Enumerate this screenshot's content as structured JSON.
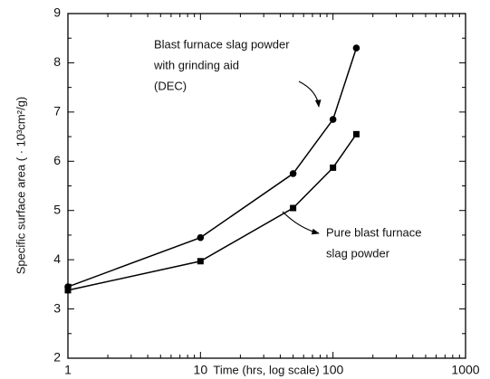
{
  "chart_data": {
    "type": "line",
    "x_label": "Time (hrs, log scale)",
    "y_label": "Specific surface area ( · 10³cm²/g)",
    "x": [
      1,
      10,
      50,
      100,
      150
    ],
    "series": [
      {
        "name": "Blast furnace slag powder with grinding aid (DEC)",
        "color": "#000000",
        "marker": "circle",
        "values": [
          3.45,
          4.45,
          5.75,
          6.85,
          8.3
        ]
      },
      {
        "name": "Pure blast furnace slag powder",
        "color": "#000000",
        "marker": "square",
        "values": [
          3.38,
          3.97,
          5.05,
          5.87,
          6.55
        ]
      }
    ],
    "annotations": [
      {
        "lines": [
          "Blast furnace slag powder",
          "with grinding aid",
          "(DEC)"
        ]
      },
      {
        "lines": [
          "Pure blast furnace",
          "slag powder"
        ]
      }
    ],
    "xscale": "log",
    "xlim": [
      1,
      1000
    ],
    "xticks": [
      1,
      10,
      100,
      1000
    ],
    "ylim": [
      2,
      9
    ],
    "yticks": [
      2,
      3,
      4,
      5,
      6,
      7,
      8,
      9
    ],
    "grid": false
  }
}
